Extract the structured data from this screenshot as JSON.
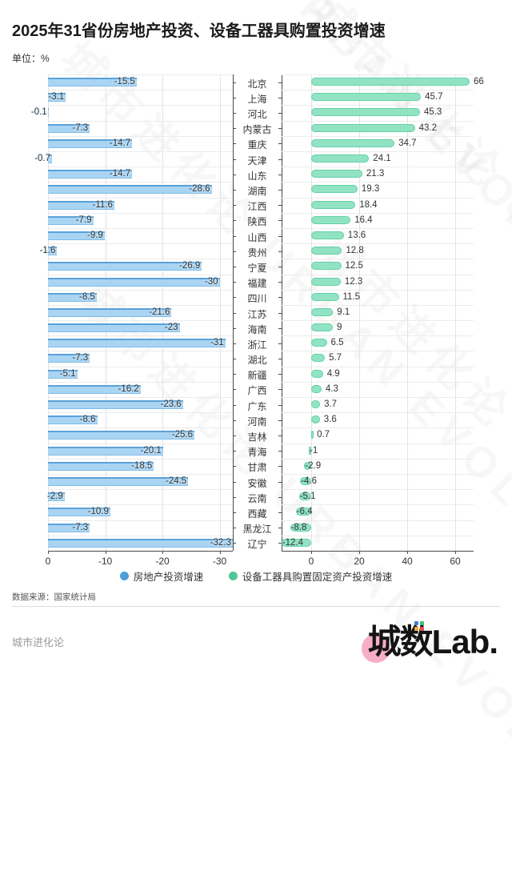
{
  "header": {
    "title": "2025年31省份房地产投资、设备工器具购置投资增速",
    "unit": "单位：%"
  },
  "chart_data": {
    "type": "bar",
    "orientation": "horizontal-bidirectional",
    "categories": [
      "北京",
      "上海",
      "河北",
      "内蒙古",
      "重庆",
      "天津",
      "山东",
      "湖南",
      "江西",
      "陕西",
      "山西",
      "贵州",
      "宁夏",
      "福建",
      "四川",
      "江苏",
      "海南",
      "浙江",
      "湖北",
      "新疆",
      "广西",
      "广东",
      "河南",
      "吉林",
      "青海",
      "甘肃",
      "安徽",
      "云南",
      "西藏",
      "黑龙江",
      "辽宁"
    ],
    "series": [
      {
        "name": "房地产投资增速",
        "side": "left",
        "color": "#4c9edc",
        "fill": "#a9d4f2",
        "values": [
          "-15.5",
          "-3.1",
          "-0.1",
          "-7.3",
          "-14.7",
          "-0.7",
          "-14.7",
          "-28.6",
          "-11.6",
          "-7.9",
          "-9.9",
          "-1.6",
          "-26.9",
          "-30",
          "-8.5",
          "-21.6",
          "-23",
          "-31",
          "-7.3",
          "-5.1",
          "-16.2",
          "-23.6",
          "-8.6",
          "-25.6",
          "-20.1",
          "-18.5",
          "-24.5",
          "-2.9",
          "-10.9",
          "-7.3",
          "-32.3"
        ]
      },
      {
        "name": "设备工器具购置固定资产投资增速",
        "side": "right",
        "color": "#4fc898",
        "fill": "#92e3c3",
        "values": [
          "66",
          "45.7",
          "45.3",
          "43.2",
          "34.7",
          "24.1",
          "21.3",
          "19.3",
          "18.4",
          "16.4",
          "13.6",
          "12.8",
          "12.5",
          "12.3",
          "11.5",
          "9.1",
          "9",
          "6.5",
          "5.7",
          "4.9",
          "4.3",
          "3.7",
          "3.6",
          "0.7",
          "-1",
          "-2.9",
          "-4.6",
          "-5.1",
          "-6.4",
          "-8.8",
          "-12.4"
        ]
      }
    ],
    "left_axis": {
      "ticks": [
        "0",
        "-10",
        "-20",
        "-30"
      ],
      "range": [
        0,
        -32.5
      ],
      "reversed": true
    },
    "right_axis": {
      "ticks": [
        "0",
        "20",
        "40",
        "60"
      ],
      "range": [
        -12.7,
        67
      ]
    },
    "legend_position": "bottom",
    "grid": true
  },
  "footer": {
    "source": "数据来源：国家统计局",
    "brand": "城市进化论",
    "logo_cn": "城数",
    "logo_en": "Lab."
  },
  "watermark": "城市进化论 URBAN EVOLUTION"
}
